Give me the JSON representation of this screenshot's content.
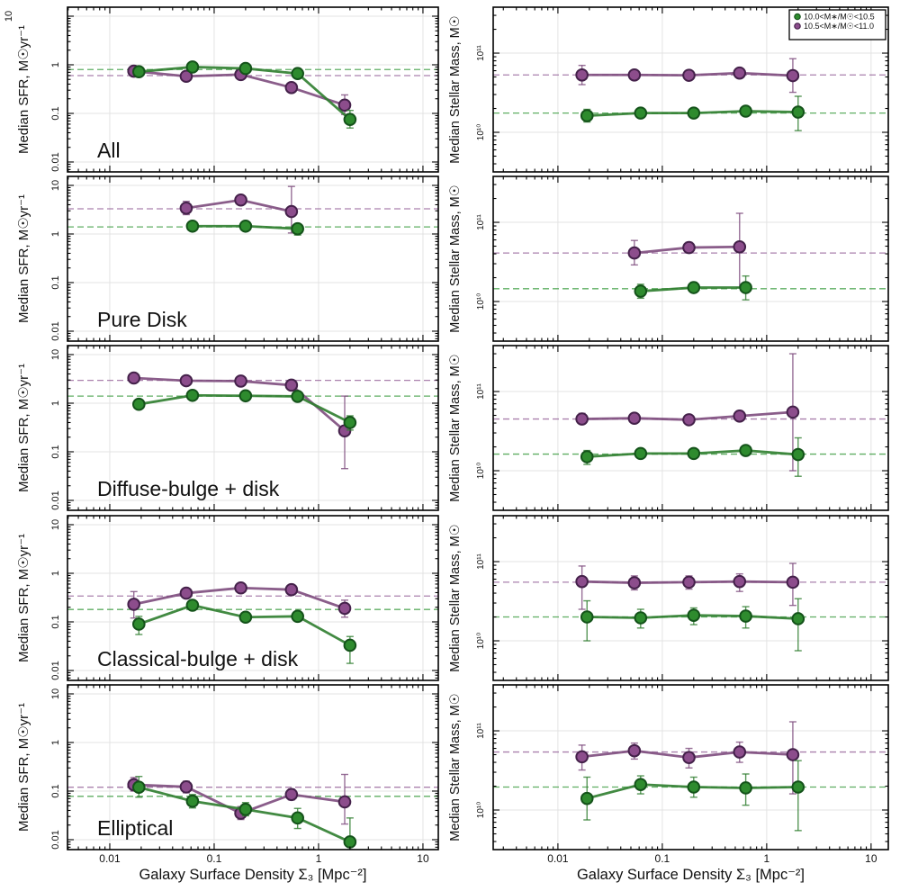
{
  "figure": {
    "background": "#ffffff",
    "border_color": "#000000",
    "grid_color": "#e3e3e3"
  },
  "chart_data": {
    "type": "line",
    "x_axis": {
      "label": "Galaxy Surface Density Σ₃ [Mpc⁻²]",
      "scale": "log",
      "range": [
        0.004,
        14
      ],
      "ticks": [
        {
          "v": 0.01,
          "label": "0.01"
        },
        {
          "v": 0.1,
          "label": "0.1"
        },
        {
          "v": 1,
          "label": "1"
        },
        {
          "v": 10,
          "label": "10"
        }
      ]
    },
    "left_y_axis": {
      "label": "Median SFR, M☉yr⁻¹",
      "scale": "log",
      "range": [
        0.0063,
        15
      ],
      "ticks": [
        {
          "v": 10,
          "label": "10"
        },
        {
          "v": 1,
          "label": "1"
        },
        {
          "v": 0.1,
          "label": "0.1"
        },
        {
          "v": 0.01,
          "label": "0.01"
        }
      ]
    },
    "right_y_axis": {
      "label": "Median Stellar Mass, M☉",
      "scale": "log",
      "range": [
        3200000000.0,
        380000000000.0
      ],
      "ticks": [
        {
          "v": 100000000000.0,
          "label": "10¹¹"
        },
        {
          "v": 10000000000.0,
          "label": "10¹⁰"
        }
      ]
    },
    "legend": {
      "position": "top-right-panel",
      "entries": [
        {
          "series": "green",
          "label": "10.0<M∗/M☉<10.5"
        },
        {
          "series": "purple",
          "label": "10.5<M∗/M☉<11.0"
        }
      ]
    },
    "series_styles": {
      "green": {
        "fill": "#2e8b2e",
        "edge": "#14521a",
        "line": "#2e7d2e",
        "dashed": "#43a047"
      },
      "purple": {
        "fill": "#8c4d8c",
        "edge": "#44214a",
        "line": "#7d4b7d",
        "dashed": "#9b6b9f"
      }
    },
    "rows": [
      {
        "name": "All",
        "sfr": {
          "purple": {
            "x": [
              0.017,
              0.054,
              0.18,
              0.55,
              1.78
            ],
            "y": [
              0.74,
              0.58,
              0.63,
              0.34,
              0.148
            ],
            "lo": [
              0.58,
              0.54,
              0.59,
              0.31,
              0.095
            ],
            "hi": [
              0.92,
              0.62,
              0.67,
              0.37,
              0.24
            ],
            "dashed": 0.6
          },
          "green": {
            "x": [
              0.019,
              0.062,
              0.2,
              0.63,
              2.0
            ],
            "y": [
              0.72,
              0.9,
              0.84,
              0.66,
              0.075
            ],
            "lo": [
              0.62,
              0.85,
              0.79,
              0.6,
              0.05
            ],
            "hi": [
              0.82,
              0.95,
              0.89,
              0.71,
              0.115
            ],
            "dashed": 0.8
          }
        },
        "mass": {
          "purple": {
            "x": [
              0.017,
              0.054,
              0.18,
              0.55,
              1.78
            ],
            "y": [
              53000000000.0,
              53000000000.0,
              52500000000.0,
              56000000000.0,
              52000000000.0
            ],
            "lo": [
              40000000000.0,
              48000000000.0,
              48000000000.0,
              49000000000.0,
              32000000000.0
            ],
            "hi": [
              70000000000.0,
              59000000000.0,
              58000000000.0,
              64000000000.0,
              85000000000.0
            ],
            "dashed": 53000000000.0
          },
          "green": {
            "x": [
              0.019,
              0.062,
              0.2,
              0.63,
              2.0
            ],
            "y": [
              16200000000.0,
              17500000000.0,
              17500000000.0,
              18500000000.0,
              18000000000.0
            ],
            "lo": [
              13500000000.0,
              16000000000.0,
              16200000000.0,
              16800000000.0,
              10500000000.0
            ],
            "hi": [
              19500000000.0,
              19500000000.0,
              19000000000.0,
              20500000000.0,
              28500000000.0
            ],
            "dashed": 17500000000.0
          }
        }
      },
      {
        "name": "Pure Disk",
        "sfr": {
          "purple": {
            "x": [
              0.054,
              0.18,
              0.55
            ],
            "y": [
              3.4,
              5.0,
              2.9
            ],
            "lo": [
              2.5,
              4.3,
              1.05
            ],
            "hi": [
              4.7,
              6.1,
              9.5
            ],
            "dashed": 3.3
          },
          "green": {
            "x": [
              0.062,
              0.2,
              0.63
            ],
            "y": [
              1.45,
              1.45,
              1.28
            ],
            "lo": [
              1.3,
              1.33,
              0.95
            ],
            "hi": [
              1.6,
              1.57,
              1.62
            ],
            "dashed": 1.4
          }
        },
        "mass": {
          "purple": {
            "x": [
              0.054,
              0.18,
              0.55
            ],
            "y": [
              41000000000.0,
              48000000000.0,
              49000000000.0
            ],
            "lo": [
              29000000000.0,
              42000000000.0,
              15000000000.0
            ],
            "hi": [
              59000000000.0,
              56000000000.0,
              130000000000.0
            ],
            "dashed": 41000000000.0
          },
          "green": {
            "x": [
              0.062,
              0.2,
              0.63
            ],
            "y": [
              13500000000.0,
              15000000000.0,
              15000000000.0
            ],
            "lo": [
              11000000000.0,
              13000000000.0,
              10500000000.0
            ],
            "hi": [
              16500000000.0,
              17500000000.0,
              21000000000.0
            ],
            "dashed": 14500000000.0
          }
        }
      },
      {
        "name": "Diffuse-bulge + disk",
        "sfr": {
          "purple": {
            "x": [
              0.017,
              0.054,
              0.18,
              0.55,
              1.78
            ],
            "y": [
              3.3,
              2.9,
              2.85,
              2.35,
              0.27
            ],
            "lo": [
              3.0,
              2.7,
              2.65,
              2.1,
              0.045
            ],
            "hi": [
              3.6,
              3.1,
              3.05,
              2.6,
              1.4
            ],
            "dashed": 2.95
          },
          "green": {
            "x": [
              0.019,
              0.062,
              0.2,
              0.63,
              2.0
            ],
            "y": [
              0.95,
              1.45,
              1.42,
              1.38,
              0.4
            ],
            "lo": [
              0.85,
              1.35,
              1.33,
              1.28,
              0.28
            ],
            "hi": [
              1.05,
              1.55,
              1.51,
              1.48,
              0.55
            ],
            "dashed": 1.4
          }
        },
        "mass": {
          "purple": {
            "x": [
              0.017,
              0.054,
              0.18,
              0.55,
              1.78
            ],
            "y": [
              45000000000.0,
              46000000000.0,
              44000000000.0,
              49000000000.0,
              55000000000.0
            ],
            "lo": [
              39000000000.0,
              40000000000.0,
              39000000000.0,
              43000000000.0,
              10000000000.0
            ],
            "hi": [
              53000000000.0,
              53000000000.0,
              50000000000.0,
              57000000000.0,
              300000000000.0
            ],
            "dashed": 45000000000.0
          },
          "green": {
            "x": [
              0.019,
              0.062,
              0.2,
              0.63,
              2.0
            ],
            "y": [
              15000000000.0,
              16500000000.0,
              16500000000.0,
              18000000000.0,
              16000000000.0
            ],
            "lo": [
              12000000000.0,
              15000000000.0,
              15000000000.0,
              16000000000.0,
              8500000000.0
            ],
            "hi": [
              18000000000.0,
              18500000000.0,
              18000000000.0,
              20000000000.0,
              26000000000.0
            ],
            "dashed": 16200000000.0
          }
        }
      },
      {
        "name": "Classical-bulge + disk",
        "sfr": {
          "purple": {
            "x": [
              0.017,
              0.054,
              0.18,
              0.55,
              1.78
            ],
            "y": [
              0.23,
              0.39,
              0.5,
              0.46,
              0.19
            ],
            "lo": [
              0.12,
              0.33,
              0.44,
              0.4,
              0.125
            ],
            "hi": [
              0.42,
              0.46,
              0.57,
              0.53,
              0.28
            ],
            "dashed": 0.34
          },
          "green": {
            "x": [
              0.019,
              0.062,
              0.2,
              0.63,
              2.0
            ],
            "y": [
              0.09,
              0.22,
              0.125,
              0.13,
              0.033
            ],
            "lo": [
              0.055,
              0.185,
              0.105,
              0.105,
              0.014
            ],
            "hi": [
              0.13,
              0.26,
              0.15,
              0.16,
              0.05
            ],
            "dashed": 0.18
          }
        },
        "mass": {
          "purple": {
            "x": [
              0.017,
              0.054,
              0.18,
              0.55,
              1.78
            ],
            "y": [
              56000000000.0,
              54000000000.0,
              55000000000.0,
              56000000000.0,
              55000000000.0
            ],
            "lo": [
              25000000000.0,
              44000000000.0,
              45000000000.0,
              42000000000.0,
              28000000000.0
            ],
            "hi": [
              88000000000.0,
              66000000000.0,
              66000000000.0,
              70000000000.0,
              95000000000.0
            ],
            "dashed": 55000000000.0
          },
          "green": {
            "x": [
              0.019,
              0.062,
              0.2,
              0.63,
              2.0
            ],
            "y": [
              20000000000.0,
              19500000000.0,
              21000000000.0,
              20500000000.0,
              19000000000.0
            ],
            "lo": [
              10000000000.0,
              14500000000.0,
              16000000000.0,
              14500000000.0,
              7500000000.0
            ],
            "hi": [
              32000000000.0,
              25000000000.0,
              26000000000.0,
              27000000000.0,
              34000000000.0
            ],
            "dashed": 20000000000.0
          }
        }
      },
      {
        "name": "Elliptical",
        "sfr": {
          "purple": {
            "x": [
              0.017,
              0.054,
              0.18,
              0.55,
              1.78
            ],
            "y": [
              0.135,
              0.122,
              0.035,
              0.085,
              0.06
            ],
            "lo": [
              0.1,
              0.092,
              0.026,
              0.066,
              0.021
            ],
            "hi": [
              0.19,
              0.16,
              0.048,
              0.11,
              0.22
            ],
            "dashed": 0.12
          },
          "green": {
            "x": [
              0.019,
              0.062,
              0.2,
              0.63,
              2.0
            ],
            "y": [
              0.12,
              0.062,
              0.042,
              0.028,
              0.009
            ],
            "lo": [
              0.075,
              0.045,
              0.031,
              0.017,
              0.004
            ],
            "hi": [
              0.2,
              0.085,
              0.058,
              0.044,
              0.028
            ],
            "dashed": 0.078
          }
        },
        "mass": {
          "purple": {
            "x": [
              0.017,
              0.054,
              0.18,
              0.55,
              1.78
            ],
            "y": [
              47000000000.0,
              56000000000.0,
              46000000000.0,
              54000000000.0,
              50000000000.0
            ],
            "lo": [
              32000000000.0,
              44000000000.0,
              34000000000.0,
              40000000000.0,
              16000000000.0
            ],
            "hi": [
              66000000000.0,
              70000000000.0,
              60000000000.0,
              72000000000.0,
              130000000000.0
            ],
            "dashed": 54000000000.0
          },
          "green": {
            "x": [
              0.019,
              0.062,
              0.2,
              0.63,
              2.0
            ],
            "y": [
              14000000000.0,
              21000000000.0,
              19500000000.0,
              19000000000.0,
              19500000000.0
            ],
            "lo": [
              7500000000.0,
              16000000000.0,
              14500000000.0,
              11500000000.0,
              5500000000.0
            ],
            "hi": [
              26000000000.0,
              27000000000.0,
              26000000000.0,
              28500000000.0,
              42000000000.0
            ],
            "dashed": 19500000000.0
          }
        }
      }
    ]
  }
}
